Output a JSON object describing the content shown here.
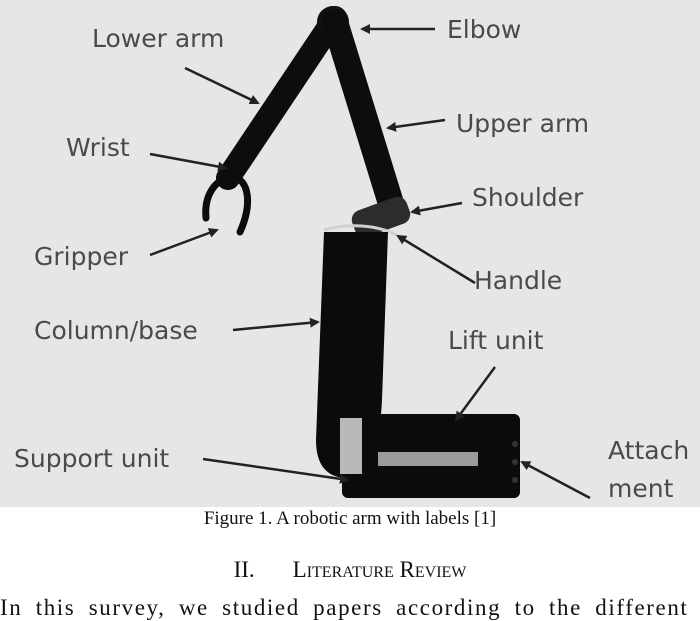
{
  "figure": {
    "labels": {
      "lower_arm": "Lower arm",
      "elbow": "Elbow",
      "wrist": "Wrist",
      "upper_arm": "Upper arm",
      "shoulder": "Shoulder",
      "gripper": "Gripper",
      "handle": "Handle",
      "column_base": "Column/base",
      "lift_unit": "Lift unit",
      "support_unit": "Support unit",
      "attachment_line1": "Attach",
      "attachment_line2": "ment"
    }
  },
  "caption": "Figure 1. A robotic arm with labels [1]",
  "section": {
    "number": "II.",
    "title": "Literature Review"
  },
  "body_text": "In this survey, we studied papers according to the different"
}
